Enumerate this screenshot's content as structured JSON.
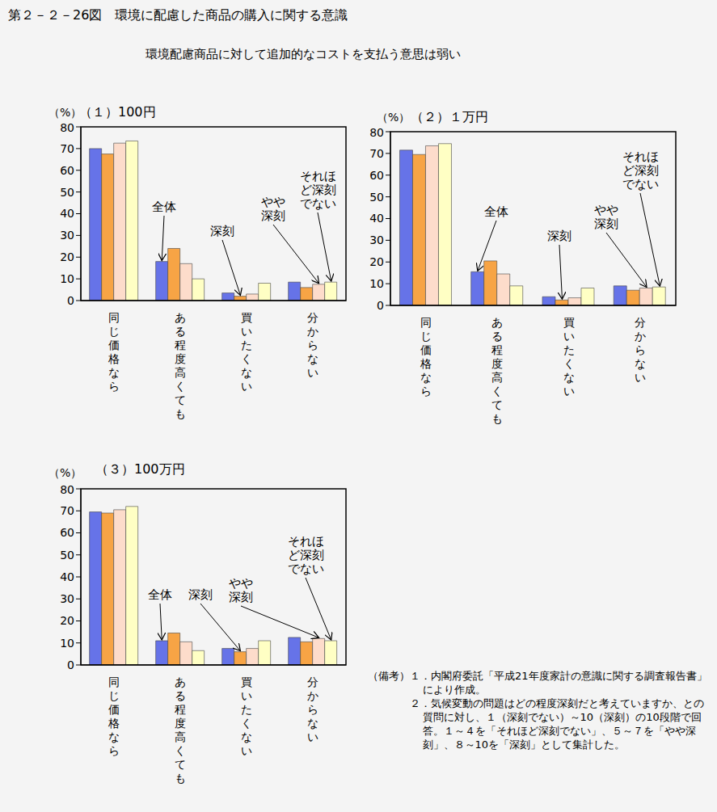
{
  "title": "第２－２－26図　環境に配慮した商品の購入に関する意識",
  "subtitle": "環境配慮商品に対して追加的なコストを支払う意思は弱い",
  "notes_label": "（備考）",
  "notes": [
    "１．内閣府委託「平成21年度家計の意識に関する調査報告書」により作成。",
    "２．気候変動の問題はどの程度深刻だと考えていますか、との質問に対し、１（深刻でない）～10（深刻）の10段階で回答。１～４を「それほど深刻でない」、５～７を「やや深刻」、８～10を「深刻」として集計した。"
  ],
  "chart_data": [
    {
      "type": "bar",
      "title": "（１）100円",
      "y_label": "（%）",
      "categories": [
        "同じ価格なら",
        "ある程度高くても",
        "買いたくない",
        "分からない"
      ],
      "series": [
        {
          "name": "全体",
          "color": "#6673e8",
          "values": [
            70,
            18,
            3.5,
            8.5
          ]
        },
        {
          "name": "深刻",
          "color": "#f7a445",
          "values": [
            67.5,
            24,
            2,
            6
          ]
        },
        {
          "name": "やや深刻",
          "color": "#fddccb",
          "values": [
            72.5,
            17,
            3,
            7.5
          ]
        },
        {
          "name": "それほど深刻でない",
          "color": "#ffffc4",
          "values": [
            73.5,
            10,
            8,
            8.5
          ]
        }
      ],
      "annotations": [
        {
          "text": "全体",
          "category": "ある程度高くても"
        },
        {
          "text": "深刻",
          "category": "買いたくない"
        },
        {
          "text": "やや深刻",
          "category": "分からない"
        },
        {
          "text": "それほど深刻でない",
          "category": "分からない"
        }
      ],
      "ylim": [
        0,
        80
      ],
      "yticks": [
        0,
        10,
        20,
        30,
        40,
        50,
        60,
        70,
        80
      ],
      "grid": false
    },
    {
      "type": "bar",
      "title": "（２）１万円",
      "y_label": "（%）",
      "categories": [
        "同じ価格なら",
        "ある程度高くても",
        "買いたくない",
        "分からない"
      ],
      "series": [
        {
          "name": "全体",
          "color": "#6673e8",
          "values": [
            71.5,
            15.5,
            4,
            9
          ]
        },
        {
          "name": "深刻",
          "color": "#f7a445",
          "values": [
            69.5,
            20.5,
            2.5,
            7
          ]
        },
        {
          "name": "やや深刻",
          "color": "#fddccb",
          "values": [
            73.5,
            14.5,
            3.5,
            8
          ]
        },
        {
          "name": "それほど深刻でない",
          "color": "#ffffc4",
          "values": [
            74.5,
            9,
            8,
            8.5
          ]
        }
      ],
      "annotations": [
        {
          "text": "全体",
          "category": "ある程度高くても"
        },
        {
          "text": "深刻",
          "category": "買いたくない"
        },
        {
          "text": "やや深刻",
          "category": "分からない"
        },
        {
          "text": "それほど深刻でない",
          "category": "分からない"
        }
      ],
      "ylim": [
        0,
        80
      ],
      "yticks": [
        0,
        10,
        20,
        30,
        40,
        50,
        60,
        70,
        80
      ],
      "grid": false
    },
    {
      "type": "bar",
      "title": "（３）100万円",
      "y_label": "（%）",
      "categories": [
        "同じ価格なら",
        "ある程度高くても",
        "買いたくない",
        "分からない"
      ],
      "series": [
        {
          "name": "全体",
          "color": "#6673e8",
          "values": [
            69.5,
            11,
            7.5,
            12.5
          ]
        },
        {
          "name": "深刻",
          "color": "#f7a445",
          "values": [
            69,
            14.5,
            6,
            10.5
          ]
        },
        {
          "name": "やや深刻",
          "color": "#fddccb",
          "values": [
            70.5,
            10.5,
            7.5,
            12
          ]
        },
        {
          "name": "それほど深刻でない",
          "color": "#ffffc4",
          "values": [
            72,
            6.5,
            11,
            11
          ]
        }
      ],
      "annotations": [
        {
          "text": "全体",
          "category": "ある程度高くても"
        },
        {
          "text": "深刻",
          "category": "買いたくない"
        },
        {
          "text": "やや深刻",
          "category": "分からない"
        },
        {
          "text": "それほど深刻でない",
          "category": "分からない"
        }
      ],
      "ylim": [
        0,
        80
      ],
      "yticks": [
        0,
        10,
        20,
        30,
        40,
        50,
        60,
        70,
        80
      ],
      "grid": false
    }
  ]
}
